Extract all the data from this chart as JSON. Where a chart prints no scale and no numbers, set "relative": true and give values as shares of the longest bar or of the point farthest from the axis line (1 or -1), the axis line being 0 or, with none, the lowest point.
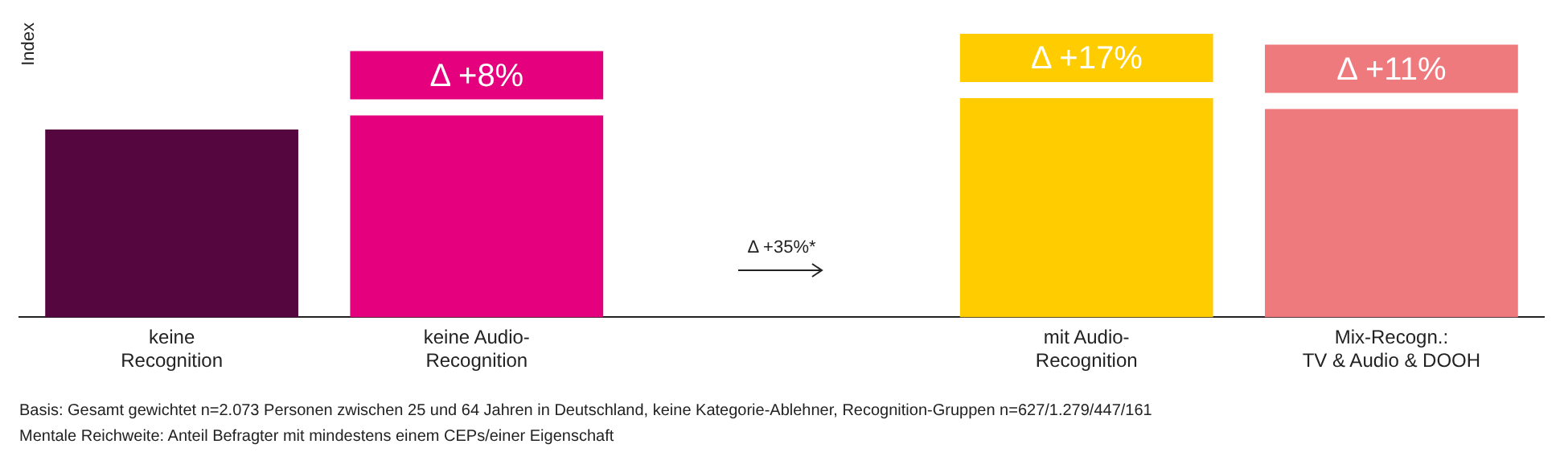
{
  "chart_data": {
    "type": "bar",
    "relative": true,
    "ylabel": "Index",
    "categories": [
      "keine\nRecognition",
      "keine Audio-\nRecognition",
      null,
      "mit Audio-\nRecognition",
      "Mix-Recogn.:\nTV & Audio & DOOH"
    ],
    "values": [
      0.857,
      0.921,
      null,
      1,
      0.95
    ],
    "colors": [
      "#55063f",
      "#e5007d",
      "#ffffff",
      "#ffcc00",
      "#ef7a7e"
    ],
    "annotations": [
      "Δ +8%",
      "Δ +17%",
      "Δ +11%",
      "Δ +35%*",
      "Basis: Gesamt gewichtet n=2.073 Personen zwischen 25 und 64 Jahren in Deutschland, keine Kategorie-Ablehner, Recognition-Gruppen n=627/1.279/447/161",
      "Mentale Reichweite: Anteil Befragter mit mindestens einem CEPs/einer Eigenschaft"
    ],
    "grid": false,
    "legend": false
  }
}
